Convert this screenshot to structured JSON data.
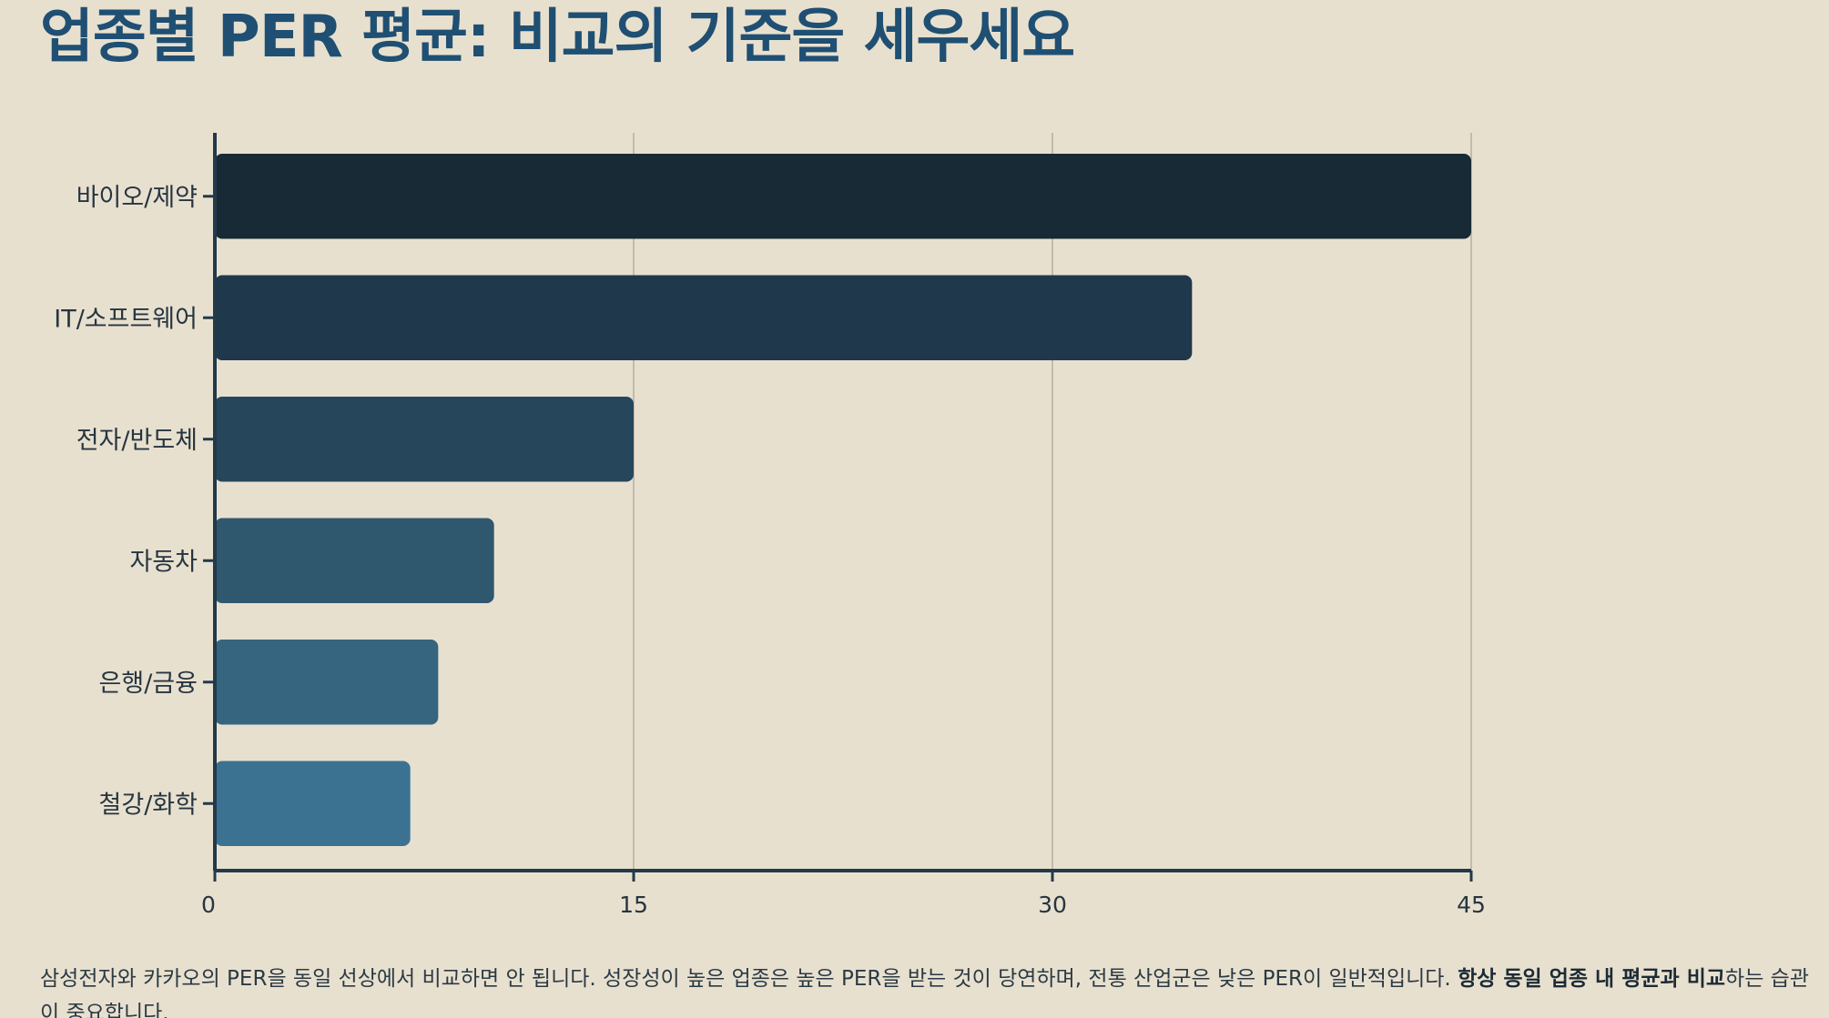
{
  "title": "업종별 PER 평균: 비교의 기준을 세우세요",
  "chart_data": {
    "type": "bar",
    "orientation": "horizontal",
    "categories": [
      "바이오/제약",
      "IT/소프트웨어",
      "전자/반도체",
      "자동차",
      "은행/금융",
      "철강/화학"
    ],
    "values": [
      45,
      35,
      15,
      10,
      8,
      7
    ],
    "xlim": [
      0,
      45
    ],
    "xticks": [
      "0",
      "15",
      "30",
      "45"
    ],
    "xtick_values": [
      0,
      15,
      30,
      45
    ],
    "grid": "vertical",
    "xlabel": "",
    "ylabel": "",
    "colors": {
      "bars": [
        "#172a35",
        "#1f384b",
        "#26475b",
        "#2f586f",
        "#36657f",
        "#3c7291"
      ],
      "axis": "#23394a",
      "grid": "#c2bbab",
      "tick_text": "#263540"
    }
  },
  "caption": {
    "part1": "삼성전자와 카카오의 PER을 동일 선상에서 비교하면 안 됩니다. 성장성이 높은 업종은 높은 PER을 받는 것이 당연하며, 전통 산업군은 낮은 PER이 일반적입니다. ",
    "emphasis": "항상 동일 업종 내 평균과 비교",
    "part2": "하는 습관이 중요합니다."
  }
}
